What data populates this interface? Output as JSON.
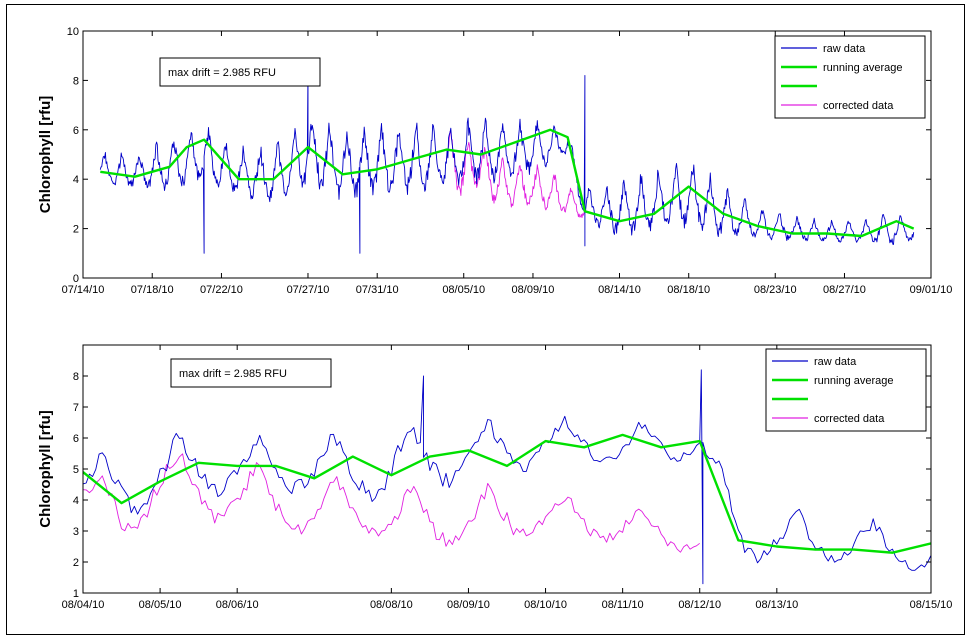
{
  "colors": {
    "raw": "#0000c8",
    "running": "#00e000",
    "corrected": "#e020e0"
  },
  "chart_data": [
    {
      "type": "line",
      "title": "",
      "xlabel": "",
      "ylabel": "Chlorophyll [rfu]",
      "xlim": [
        "2010-07-14",
        "2010-09-01"
      ],
      "ylim": [
        0,
        10
      ],
      "yticks": [
        0,
        2,
        4,
        6,
        8,
        10
      ],
      "xticks": [
        "07/14/10",
        "07/18/10",
        "07/22/10",
        "07/27/10",
        "07/31/10",
        "08/05/10",
        "08/09/10",
        "08/14/10",
        "08/18/10",
        "08/23/10",
        "08/27/10",
        "09/01/10"
      ],
      "xtick_dates": [
        "2010-07-14",
        "2010-07-18",
        "2010-07-22",
        "2010-07-27",
        "2010-07-31",
        "2010-08-05",
        "2010-08-09",
        "2010-08-14",
        "2010-08-18",
        "2010-08-23",
        "2010-08-27",
        "2010-09-01"
      ],
      "annotation": "max drift = 2.985 RFU",
      "legend": {
        "placement": "top-right",
        "entries": [
          "raw data",
          "running average",
          "",
          "corrected data"
        ]
      },
      "series": [
        {
          "name": "raw data",
          "kind": "raw",
          "x": [
            "2010-07-15",
            "2010-07-17",
            "2010-07-19",
            "2010-07-21",
            "2010-07-23",
            "2010-07-25",
            "2010-07-27",
            "2010-07-29",
            "2010-07-31",
            "2010-08-02",
            "2010-08-04",
            "2010-08-06",
            "2010-08-08",
            "2010-08-10",
            "2010-08-11",
            "2010-08-12",
            "2010-08-14",
            "2010-08-16",
            "2010-08-18",
            "2010-08-20",
            "2010-08-22",
            "2010-08-24",
            "2010-08-26",
            "2010-08-28",
            "2010-08-30",
            "2010-08-31"
          ],
          "y": [
            4.3,
            4.2,
            4.4,
            4.8,
            4.1,
            4.0,
            4.9,
            4.4,
            4.5,
            4.6,
            4.7,
            4.9,
            5.0,
            5.3,
            5.4,
            2.8,
            2.6,
            2.9,
            3.2,
            2.5,
            2.1,
            1.9,
            1.8,
            1.8,
            1.9,
            1.8
          ],
          "amp": [
            0.8,
            0.8,
            1.2,
            1.3,
            1.1,
            1.3,
            1.6,
            1.7,
            1.7,
            1.6,
            1.6,
            1.5,
            1.4,
            1.0,
            0.6,
            0.8,
            1.3,
            1.4,
            1.6,
            1.2,
            0.7,
            0.6,
            0.5,
            0.5,
            0.8,
            0.5
          ],
          "spikes": [
            {
              "x": "2010-07-21",
              "y": 1.0
            },
            {
              "x": "2010-07-27",
              "y": 8.5
            },
            {
              "x": "2010-07-30",
              "y": 1.0
            },
            {
              "x": "2010-08-12",
              "y": 8.2
            },
            {
              "x": "2010-08-12",
              "y": 1.3
            }
          ]
        },
        {
          "name": "running average",
          "kind": "running",
          "x": [
            "2010-07-15",
            "2010-07-17",
            "2010-07-19",
            "2010-07-20",
            "2010-07-21",
            "2010-07-23",
            "2010-07-25",
            "2010-07-27",
            "2010-07-29",
            "2010-07-31",
            "2010-08-02",
            "2010-08-04",
            "2010-08-06",
            "2010-08-08",
            "2010-08-10",
            "2010-08-11",
            "2010-08-12",
            "2010-08-14",
            "2010-08-16",
            "2010-08-18",
            "2010-08-20",
            "2010-08-22",
            "2010-08-24",
            "2010-08-26",
            "2010-08-28",
            "2010-08-30",
            "2010-08-31"
          ],
          "y": [
            4.3,
            4.1,
            4.5,
            5.3,
            5.6,
            4.0,
            4.0,
            5.3,
            4.2,
            4.4,
            4.8,
            5.2,
            5.0,
            5.5,
            6.0,
            5.7,
            2.7,
            2.3,
            2.6,
            3.7,
            2.6,
            2.1,
            1.8,
            1.8,
            1.7,
            2.3,
            2.0
          ]
        },
        {
          "name": "corrected data",
          "kind": "corrected",
          "x": [
            "2010-08-04",
            "2010-08-05",
            "2010-08-06",
            "2010-08-07",
            "2010-08-08",
            "2010-08-09",
            "2010-08-10",
            "2010-08-11",
            "2010-08-12"
          ],
          "y": [
            4.6,
            4.2,
            4.4,
            3.8,
            3.6,
            3.6,
            3.4,
            3.1,
            2.7
          ],
          "amp": [
            1.5,
            1.5,
            1.3,
            1.2,
            1.1,
            1.0,
            0.9,
            0.8,
            0.5
          ]
        }
      ]
    },
    {
      "type": "line",
      "title": "",
      "xlabel": "",
      "ylabel": "Chlorophyll [rfu]",
      "xlim": [
        "2010-08-04",
        "2010-08-15"
      ],
      "ylim": [
        1,
        9
      ],
      "yticks": [
        1,
        2,
        3,
        4,
        5,
        6,
        7,
        8
      ],
      "xticks": [
        "08/04/10",
        "08/05/10",
        "08/06/10",
        "08/08/10",
        "08/09/10",
        "08/10/10",
        "08/11/10",
        "08/12/10",
        "08/13/10",
        "08/15/10"
      ],
      "xtick_dates": [
        "2010-08-04",
        "2010-08-05",
        "2010-08-06",
        "2010-08-08",
        "2010-08-09",
        "2010-08-10",
        "2010-08-11",
        "2010-08-12",
        "2010-08-13",
        "2010-08-15"
      ],
      "annotation": "max drift = 2.985 RFU",
      "legend": {
        "placement": "top-right",
        "entries": [
          "raw data",
          "running average",
          "",
          "corrected data"
        ]
      },
      "series": [
        {
          "name": "raw data",
          "kind": "raw",
          "x": [
            "2010-08-04",
            "2010-08-04 12:00",
            "2010-08-05",
            "2010-08-05 12:00",
            "2010-08-06",
            "2010-08-06 12:00",
            "2010-08-07",
            "2010-08-07 12:00",
            "2010-08-08",
            "2010-08-08 12:00",
            "2010-08-09",
            "2010-08-09 12:00",
            "2010-08-10",
            "2010-08-10 12:00",
            "2010-08-11",
            "2010-08-11 12:00",
            "2010-08-12",
            "2010-08-12 12:00",
            "2010-08-13",
            "2010-08-13 12:00",
            "2010-08-14",
            "2010-08-14 12:00",
            "2010-08-15"
          ],
          "y": [
            4.4,
            4.2,
            4.8,
            5.0,
            4.9,
            5.0,
            5.0,
            4.9,
            5.0,
            5.2,
            5.4,
            5.4,
            5.8,
            5.8,
            5.7,
            5.7,
            5.9,
            2.9,
            2.6,
            2.6,
            2.6,
            2.3,
            2.1
          ],
          "amp": [
            1.0,
            1.3,
            1.3,
            1.3,
            1.2,
            1.1,
            1.1,
            1.2,
            1.5,
            1.3,
            1.2,
            1.2,
            0.8,
            0.9,
            0.8,
            0.8,
            0.6,
            1.2,
            1.2,
            1.0,
            1.0,
            0.8,
            0.6
          ],
          "spikes": [
            {
              "x": "2010-08-08 10:00",
              "y": 8.0
            },
            {
              "x": "2010-08-12 00:30",
              "y": 8.2
            },
            {
              "x": "2010-08-12 01:00",
              "y": 1.3
            }
          ]
        },
        {
          "name": "running average",
          "kind": "running",
          "x": [
            "2010-08-04",
            "2010-08-04 12:00",
            "2010-08-05",
            "2010-08-05 12:00",
            "2010-08-06",
            "2010-08-06 12:00",
            "2010-08-07",
            "2010-08-07 12:00",
            "2010-08-08",
            "2010-08-08 12:00",
            "2010-08-09",
            "2010-08-09 12:00",
            "2010-08-10",
            "2010-08-10 12:00",
            "2010-08-11",
            "2010-08-11 12:00",
            "2010-08-12",
            "2010-08-12 12:00",
            "2010-08-13",
            "2010-08-13 12:00",
            "2010-08-14",
            "2010-08-14 12:00",
            "2010-08-15"
          ],
          "y": [
            4.9,
            3.9,
            4.6,
            5.2,
            5.1,
            5.1,
            4.7,
            5.4,
            4.8,
            5.4,
            5.6,
            5.1,
            5.9,
            5.7,
            6.1,
            5.7,
            5.9,
            2.7,
            2.5,
            2.4,
            2.4,
            2.3,
            2.6
          ]
        },
        {
          "name": "corrected data",
          "kind": "corrected",
          "x": [
            "2010-08-04",
            "2010-08-04 12:00",
            "2010-08-05",
            "2010-08-05 12:00",
            "2010-08-06",
            "2010-08-06 12:00",
            "2010-08-07",
            "2010-08-07 12:00",
            "2010-08-08",
            "2010-08-08 12:00",
            "2010-08-09",
            "2010-08-09 12:00",
            "2010-08-10",
            "2010-08-10 12:00",
            "2010-08-11",
            "2010-08-11 12:00",
            "2010-08-12"
          ],
          "y": [
            4.2,
            3.3,
            4.7,
            4.1,
            4.0,
            3.9,
            3.4,
            3.8,
            3.3,
            3.3,
            3.3,
            3.4,
            3.4,
            3.3,
            3.1,
            2.9,
            2.6
          ],
          "amp": [
            1.0,
            1.3,
            1.3,
            1.3,
            1.2,
            1.1,
            1.1,
            1.2,
            1.0,
            1.3,
            1.1,
            1.1,
            0.8,
            0.9,
            0.8,
            0.8,
            0.4
          ]
        }
      ]
    }
  ]
}
